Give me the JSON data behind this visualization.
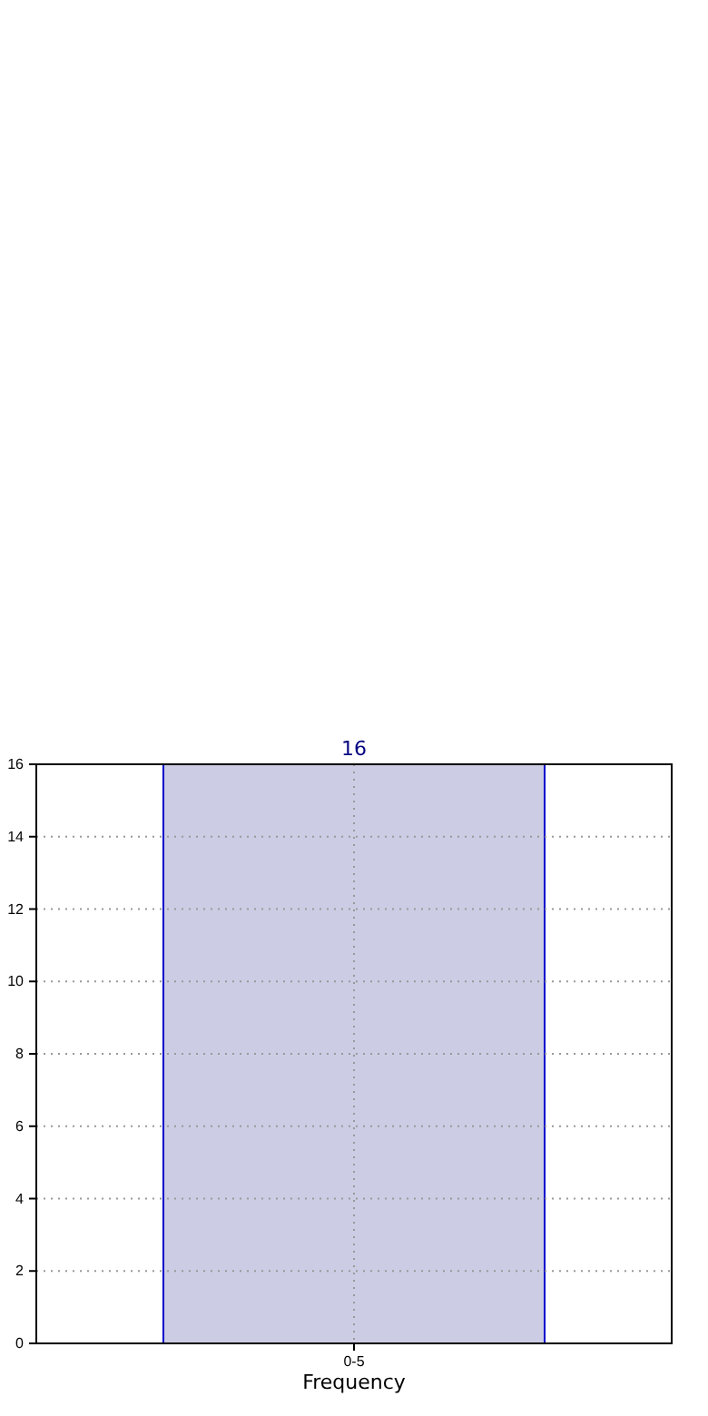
{
  "chart_data": {
    "type": "bar",
    "xlabel": "Frequency",
    "categories": [
      "0-5"
    ],
    "values": [
      16
    ],
    "color": "#cccce4",
    "ylim": [
      0,
      16
    ],
    "yticks": [
      0,
      2,
      4,
      6,
      8,
      10,
      12,
      14,
      16
    ],
    "grid": true,
    "data_labels": true
  }
}
